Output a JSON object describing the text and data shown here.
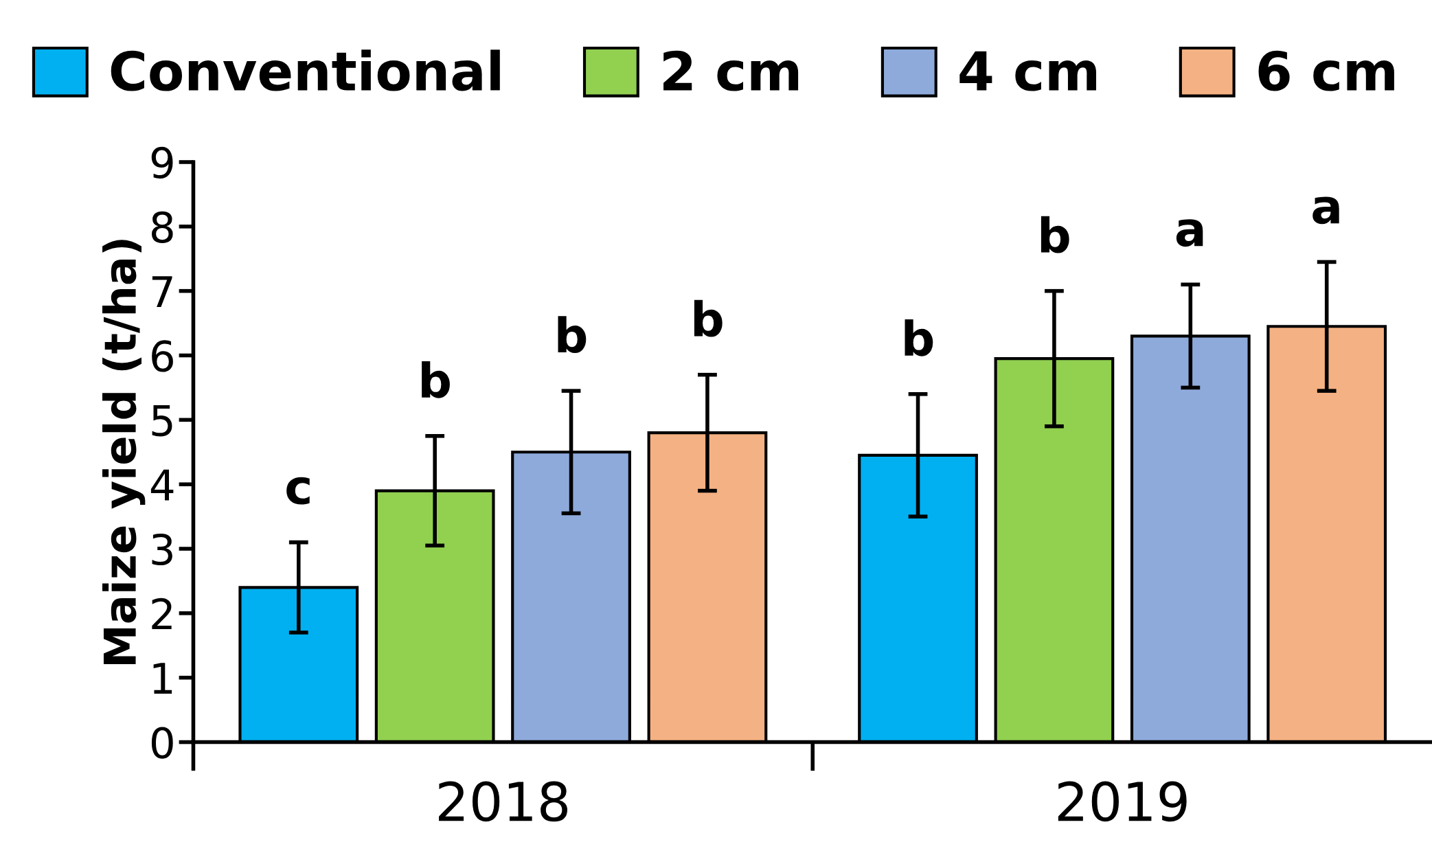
{
  "chart_data": {
    "type": "bar",
    "ylabel": "Maize yield (t/ha)",
    "categories": [
      "2018",
      "2019"
    ],
    "series": [
      {
        "name": "Conventional",
        "color": "#00b0f0",
        "values": [
          2.4,
          4.45
        ],
        "errors": [
          0.7,
          0.95
        ]
      },
      {
        "name": "2 cm",
        "color": "#92d050",
        "values": [
          3.9,
          5.95
        ],
        "errors": [
          0.85,
          1.05
        ]
      },
      {
        "name": "4 cm",
        "color": "#8eaadb",
        "values": [
          4.5,
          6.3
        ],
        "errors": [
          0.95,
          0.8
        ]
      },
      {
        "name": "6 cm",
        "color": "#f4b183",
        "values": [
          4.8,
          6.45
        ],
        "errors": [
          0.9,
          1.0
        ]
      }
    ],
    "ylim": [
      0,
      9
    ],
    "yticks": [
      0,
      1,
      2,
      3,
      4,
      5,
      6,
      7,
      8,
      9
    ],
    "grid": false,
    "legend": "top",
    "annotations": [
      "c",
      "b",
      "b",
      "b",
      "b",
      "b",
      "a",
      "a"
    ]
  }
}
